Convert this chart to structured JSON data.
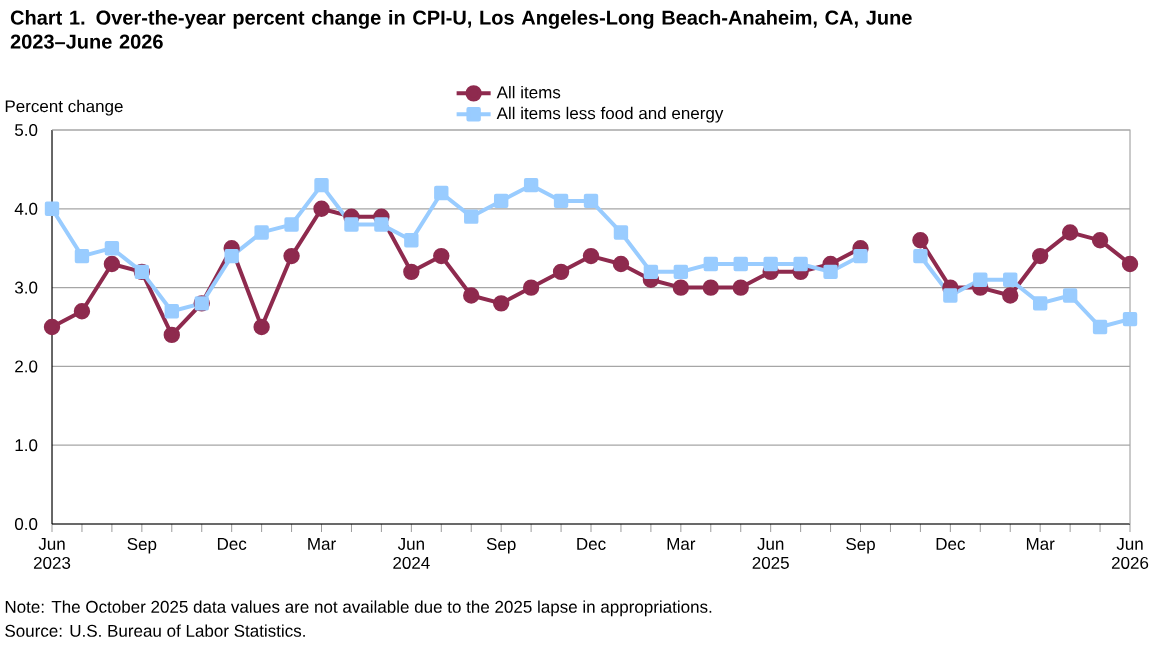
{
  "chart_data": {
    "type": "line",
    "title": "Chart 1. Over-the-year percent change in CPI-U, Los Angeles-Long Beach-Anaheim, CA, June 2023–June 2026",
    "ylabel": "Percent change",
    "categories": [
      "Jun 2023",
      null,
      null,
      "Sep",
      null,
      null,
      "Dec",
      null,
      null,
      "Mar",
      null,
      null,
      "Jun 2024",
      null,
      null,
      "Sep",
      null,
      null,
      "Dec",
      null,
      null,
      "Mar",
      null,
      null,
      "Jun 2025",
      null,
      null,
      "Sep",
      null,
      null,
      "Dec",
      null,
      null,
      "Mar",
      null,
      null,
      "Jun 2026"
    ],
    "series": [
      {
        "name": "All items",
        "color": "#8e2a4e",
        "values": [
          2.5,
          2.7,
          3.3,
          3.2,
          2.4,
          2.8,
          3.5,
          2.5,
          3.4,
          4.0,
          3.9,
          3.9,
          3.2,
          3.4,
          2.9,
          2.8,
          3.0,
          3.2,
          3.4,
          3.3,
          3.1,
          3.0,
          3.0,
          3.0,
          3.2,
          3.2,
          3.3,
          3.5,
          null,
          3.6,
          3.0,
          3.0,
          2.9,
          3.4,
          3.7,
          3.6,
          3.3
        ],
        "marker": "circle"
      },
      {
        "name": "All items less food and energy",
        "color": "#99ccff",
        "values": [
          4.0,
          3.4,
          3.5,
          3.2,
          2.7,
          2.8,
          3.4,
          3.7,
          3.8,
          4.3,
          3.8,
          3.8,
          3.6,
          4.2,
          3.9,
          4.1,
          4.3,
          4.1,
          4.1,
          3.7,
          3.2,
          3.2,
          3.3,
          3.3,
          3.3,
          3.3,
          3.2,
          3.4,
          null,
          3.4,
          2.9,
          3.1,
          3.1,
          2.8,
          2.9,
          2.5,
          2.6
        ],
        "marker": "square"
      }
    ],
    "ylim": [
      0,
      5
    ],
    "yticks": [
      {
        "value": 0,
        "label": "0.0"
      },
      {
        "value": 1,
        "label": "1.0"
      },
      {
        "value": 2,
        "label": "2.0"
      },
      {
        "value": 3,
        "label": "3.0"
      },
      {
        "value": 4,
        "label": "4.0"
      },
      {
        "value": 5,
        "label": "5.0"
      }
    ],
    "grid": "y",
    "legend": "top",
    "annotations": [
      "Note: The October 2025 data values are not available due to the 2025 lapse in appropriations.",
      "Source: U.S. Bureau of Labor Statistics."
    ]
  }
}
